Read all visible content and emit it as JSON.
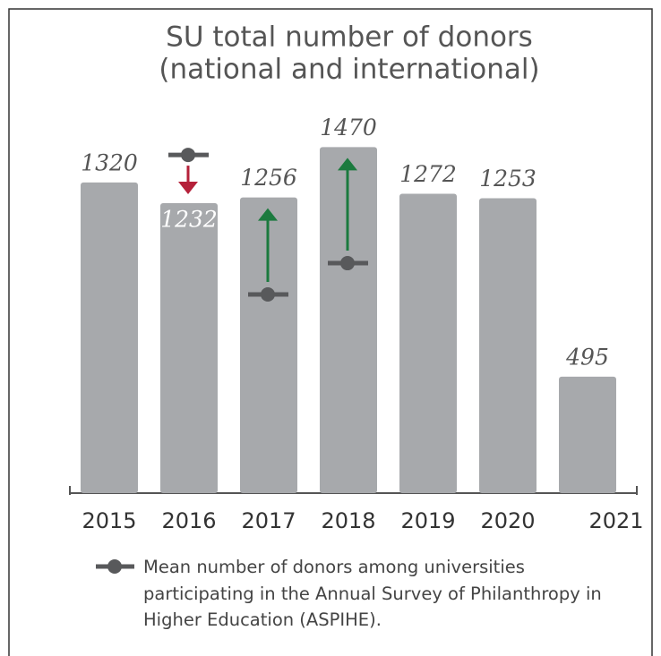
{
  "chart_data": {
    "type": "bar",
    "title": [
      "SU total number of donors",
      "(national and international)"
    ],
    "categories": [
      "2015",
      "2016",
      "2017",
      "2018",
      "2019",
      "2020",
      "2021"
    ],
    "values": [
      1320,
      1232,
      1256,
      1470,
      1272,
      1253,
      495
    ],
    "color": "#a7a9ac",
    "ylim": [
      0,
      1700
    ],
    "mean": {
      "name": "Mean number of donors among universities participating in the Annual Survey of Philanthropy in Higher Education (ASPIHE).",
      "color": "#58595b",
      "values": [
        null,
        1437,
        844,
        977,
        null,
        null,
        null
      ]
    },
    "up_color": "#1b7a3e",
    "down_color": "#b5213a"
  }
}
